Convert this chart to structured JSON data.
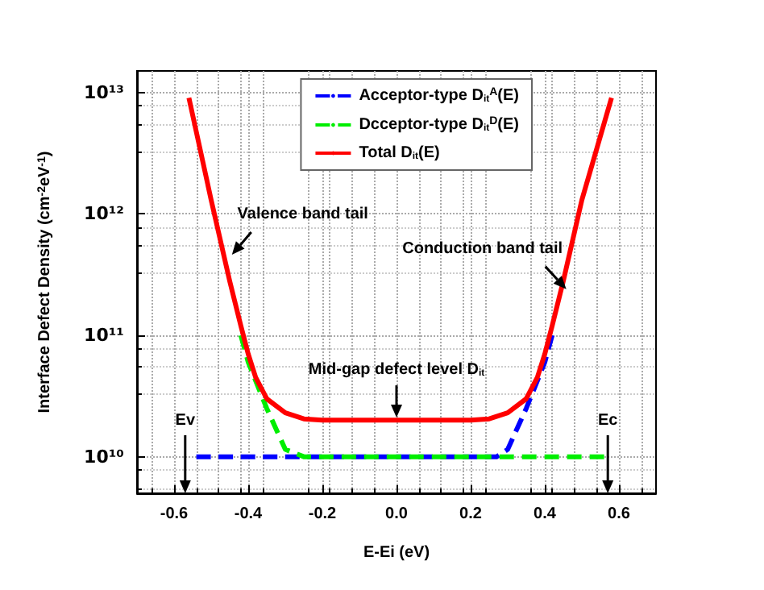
{
  "chart_data": {
    "type": "line",
    "xlabel": "E-Ei (eV)",
    "ylabel": "Interface Defect Density (cm$^{-2}$eV$^{-1}$)",
    "xlim": [
      -0.7,
      0.7
    ],
    "xticks": [
      -0.6,
      -0.4,
      -0.2,
      {
        "value": 0,
        "label": "0.0"
      },
      0.2,
      0.4,
      0.6
    ],
    "ylim": [
      5000000000.0,
      15000000000000.0
    ],
    "yticks": [
      {
        "value": 10000000000.0,
        "label": "10¹⁰"
      },
      {
        "value": 100000000000.0,
        "label": "10¹¹"
      },
      {
        "value": 1000000000000.0,
        "label": "10¹²"
      },
      {
        "value": 10000000000000.0,
        "label": "10¹³"
      }
    ],
    "ref_lines": [
      {
        "axis": "x",
        "value": -0.57,
        "label": "Ev"
      },
      {
        "axis": "x",
        "value": 0.57,
        "label": "Ec"
      }
    ],
    "log": "y",
    "grid": true,
    "legend": "top right",
    "series": [
      {
        "name": "Acceptor-type D$_{it}$$^{A}$(E)",
        "color": "#0000ff",
        "line_style": "dashed",
        "x": [
          -0.54,
          -0.2,
          0.0,
          0.2,
          0.27,
          0.3,
          0.35,
          0.4,
          0.42
        ],
        "values": [
          10000000000.0,
          10000000000.0,
          10000000000.0,
          10000000000.0,
          10000000000.0,
          11500000000.0,
          25000000000.0,
          60000000000.0,
          100000000000.0
        ]
      },
      {
        "name": "Dcceptor-type D$_{it}$$^{D}$(E)",
        "color": "#00ee00",
        "line_style": "dashed",
        "x": [
          -0.42,
          -0.4,
          -0.35,
          -0.3,
          -0.25,
          0.0,
          0.2,
          0.4,
          0.56
        ],
        "values": [
          100000000000.0,
          60000000000.0,
          25000000000.0,
          11500000000.0,
          10000000000.0,
          10000000000.0,
          10000000000.0,
          10000000000.0,
          10000000000.0
        ]
      },
      {
        "name": "Total D$_{it}$(E)",
        "color": "#ff0000",
        "line_style": "solid",
        "x": [
          -0.56,
          -0.5,
          -0.45,
          -0.42,
          -0.4,
          -0.38,
          -0.35,
          -0.3,
          -0.25,
          -0.2,
          0.0,
          0.2,
          0.25,
          0.3,
          0.35,
          0.38,
          0.4,
          0.42,
          0.45,
          0.5,
          0.58
        ],
        "values": [
          9000000000000.0,
          1300000000000.0,
          280000000000.0,
          120000000000.0,
          70000000000.0,
          45000000000.0,
          30000000000.0,
          23000000000.0,
          20500000000.0,
          20000000000.0,
          20000000000.0,
          20000000000.0,
          20500000000.0,
          23000000000.0,
          30000000000.0,
          45000000000.0,
          70000000000.0,
          120000000000.0,
          280000000000.0,
          1300000000000.0,
          9000000000000.0
        ]
      }
    ],
    "annotations": [
      {
        "text": "Valence band tail",
        "x": -0.444,
        "y": 460000000000.0
      },
      {
        "text": "Conduction band tail",
        "x": 0.458,
        "y": 240000000000.0
      },
      {
        "text": "Mid-gap defect level D$_{it}$",
        "x": 0.0,
        "y": 21000000000.0
      }
    ]
  }
}
